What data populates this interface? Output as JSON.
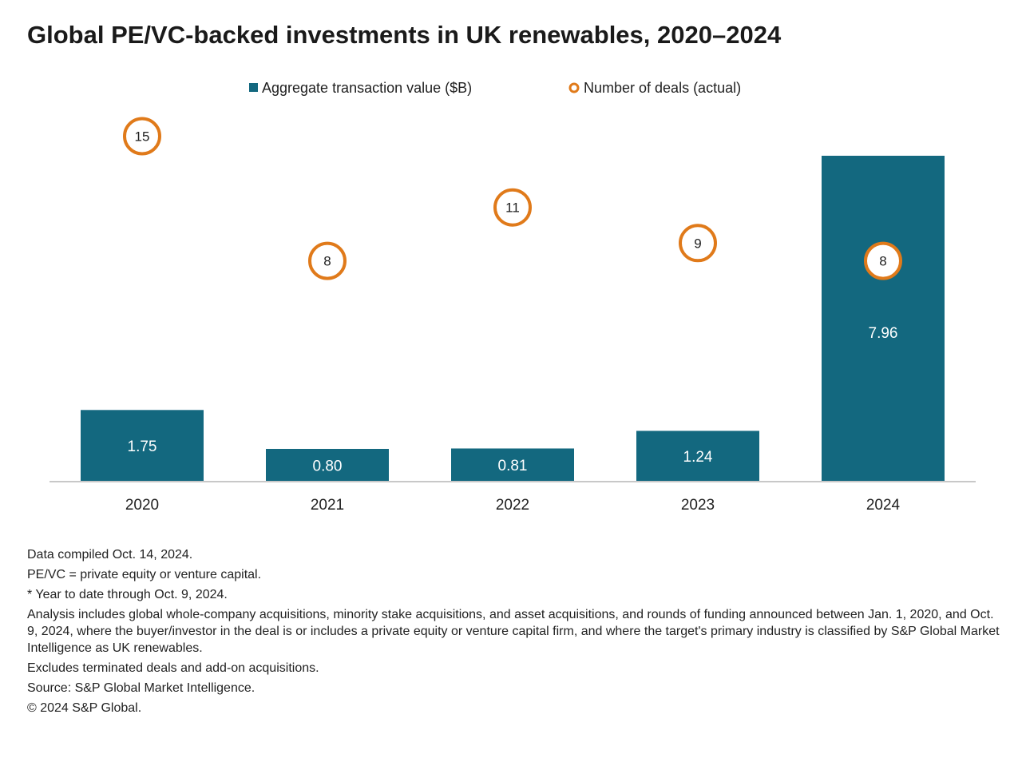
{
  "title": "Global PE/VC-backed investments in UK renewables, 2020–2024",
  "colors": {
    "bar": "#13687f",
    "circle_stroke": "#e07a1a",
    "axis": "#c8c8c8",
    "text": "#1f1f1f"
  },
  "chart_data": {
    "type": "bar",
    "categories": [
      "2020",
      "2021",
      "2022",
      "2023",
      "2024"
    ],
    "series": [
      {
        "name": "Aggregate transaction value ($B)",
        "kind": "bar",
        "values": [
          1.75,
          0.8,
          0.81,
          1.24,
          7.96
        ],
        "labels": [
          "1.75",
          "0.80",
          "0.81",
          "1.24",
          "7.96"
        ]
      },
      {
        "name": "Number of deals (actual)",
        "kind": "scatter",
        "marker": "open-circle",
        "values": [
          15,
          8,
          11,
          9,
          8
        ],
        "labels": [
          "15",
          "8",
          "11",
          "9",
          "8"
        ]
      }
    ],
    "legend_position": "top-center",
    "grid": false
  },
  "notes": [
    "Data compiled Oct. 14, 2024.",
    "PE/VC = private equity or venture capital.",
    "* Year to date through Oct. 9, 2024.",
    "Analysis includes global whole-company acquisitions, minority stake acquisitions, and asset acquisitions, and rounds of funding announced between Jan. 1, 2020, and Oct. 9, 2024, where the buyer/investor in the deal is or includes a private equity or venture capital firm, and where the target's primary industry is classified by S&P Global Market Intelligence as UK renewables.",
    "Excludes terminated deals and add-on acquisitions.",
    "Source: S&P Global Market Intelligence.",
    "© 2024 S&P Global."
  ]
}
